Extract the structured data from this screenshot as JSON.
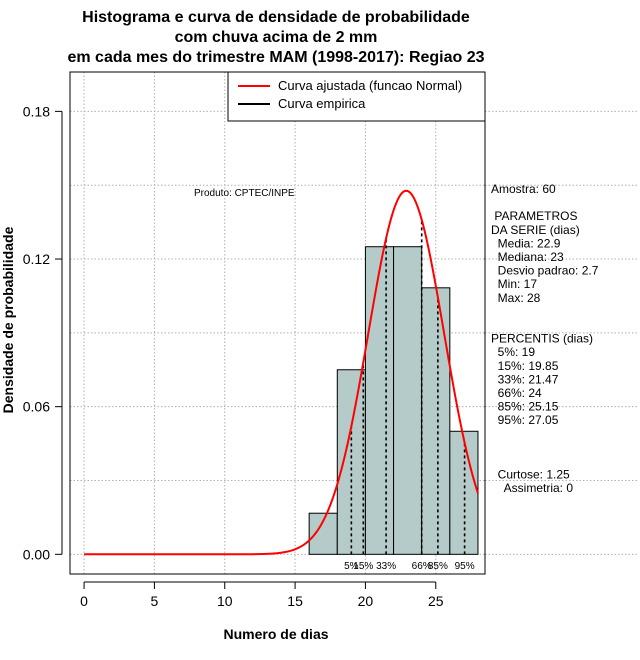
{
  "chart_data": {
    "type": "bar",
    "title_lines": [
      "Histograma e curva de densidade de probabilidade",
      "com chuva acima de 2 mm",
      "em cada mes do trimestre MAM (1998-2017): Regiao 23"
    ],
    "xlabel": "Numero de dias",
    "ylabel": "Densidade de probabilidade",
    "xlim": [
      -1,
      28.5
    ],
    "ylim": [
      -0.008,
      0.196
    ],
    "xticks": [
      0,
      5,
      10,
      15,
      20,
      25
    ],
    "xtick_labels": [
      "0",
      "5",
      "10",
      "15",
      "20",
      "25"
    ],
    "yticks": [
      0.0,
      0.06,
      0.12,
      0.18
    ],
    "ytick_labels": [
      "0.00",
      "0.06",
      "0.12",
      "0.18"
    ],
    "grid": true,
    "bins": [
      {
        "x0": 16,
        "x1": 18,
        "density": 0.0167
      },
      {
        "x0": 18,
        "x1": 20,
        "density": 0.075
      },
      {
        "x0": 20,
        "x1": 22,
        "density": 0.125
      },
      {
        "x0": 22,
        "x1": 24,
        "density": 0.125
      },
      {
        "x0": 24,
        "x1": 26,
        "density": 0.1083
      },
      {
        "x0": 26,
        "x1": 28,
        "density": 0.05
      }
    ],
    "bar_color": "#b5cbc9",
    "normal_fit": {
      "mean": 22.9,
      "sd": 2.7,
      "x_from": 0,
      "x_to": 28,
      "color": "#ff0000"
    },
    "percentile_lines": [
      {
        "x": 19,
        "label": "5%"
      },
      {
        "x": 19.85,
        "label": "15%"
      },
      {
        "x": 21.47,
        "label": "33%"
      },
      {
        "x": 24,
        "label": "66%"
      },
      {
        "x": 25.15,
        "label": "85%"
      },
      {
        "x": 27.05,
        "label": "95%"
      }
    ],
    "legend": {
      "position": "top-right",
      "entries": [
        {
          "label": "Curva ajustada (funcao Normal)",
          "color": "#ff0000"
        },
        {
          "label": "Curva empirica",
          "color": "#000000"
        }
      ]
    },
    "product_label": "Produto: CPTEC/INPE",
    "stats_text": [
      "Amostra: 60",
      "",
      " PARAMETROS",
      "DA SERIE (dias)",
      "  Media: 22.9",
      "  Mediana: 23",
      "  Desvio padrao: 2.7",
      "  Min: 17",
      "  Max: 28",
      "",
      "",
      "PERCENTIS (dias)",
      "  5%: 19",
      "  15%: 19.85",
      "  33%: 21.47",
      "  66%: 24",
      "  85%: 25.15",
      "  95%: 27.05",
      "",
      "",
      "",
      "  Curtose: 1.25",
      "    Assimetria: 0"
    ]
  }
}
